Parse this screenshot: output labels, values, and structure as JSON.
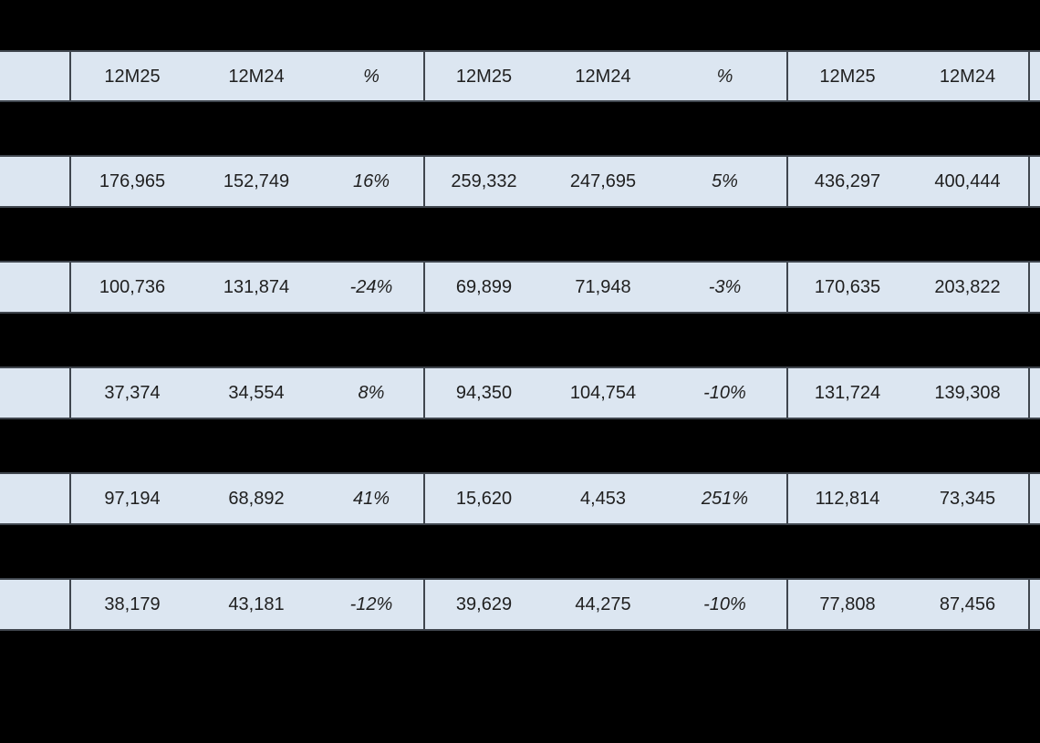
{
  "page": {
    "background_color": "#000000",
    "title_text": ""
  },
  "table_style": {
    "row_background_color": "#dce6f1",
    "border_color": "#40464e",
    "text_color": "#1f1f1f"
  },
  "chart_data": {
    "type": "table",
    "title": "",
    "columns": [
      "12M25",
      "12M24",
      "%",
      "12M25",
      "12M24",
      "%",
      "12M25",
      "12M24"
    ],
    "column_groups": [
      {
        "columns": [
          "12M25",
          "12M24",
          "%"
        ]
      },
      {
        "columns": [
          "12M25",
          "12M24",
          "%"
        ]
      },
      {
        "columns": [
          "12M25",
          "12M24"
        ]
      }
    ],
    "row_labels": [
      "",
      "",
      "",
      "",
      ""
    ],
    "rows": [
      [
        "176,965",
        "152,749",
        "16%",
        "259,332",
        "247,695",
        "5%",
        "436,297",
        "400,444"
      ],
      [
        "100,736",
        "131,874",
        "-24%",
        "69,899",
        "71,948",
        "-3%",
        "170,635",
        "203,822"
      ],
      [
        "37,374",
        "34,554",
        "8%",
        "94,350",
        "104,754",
        "-10%",
        "131,724",
        "139,308"
      ],
      [
        "97,194",
        "68,892",
        "41%",
        "15,620",
        "4,453",
        "251%",
        "112,814",
        "73,345"
      ],
      [
        "38,179",
        "43,181",
        "-12%",
        "39,629",
        "44,275",
        "-10%",
        "77,808",
        "87,456"
      ]
    ],
    "layout": {
      "grid": "on",
      "separator_bands": "black horizontal bands between data rows (redacted labels)",
      "rightmost_column_clipped": true
    }
  }
}
